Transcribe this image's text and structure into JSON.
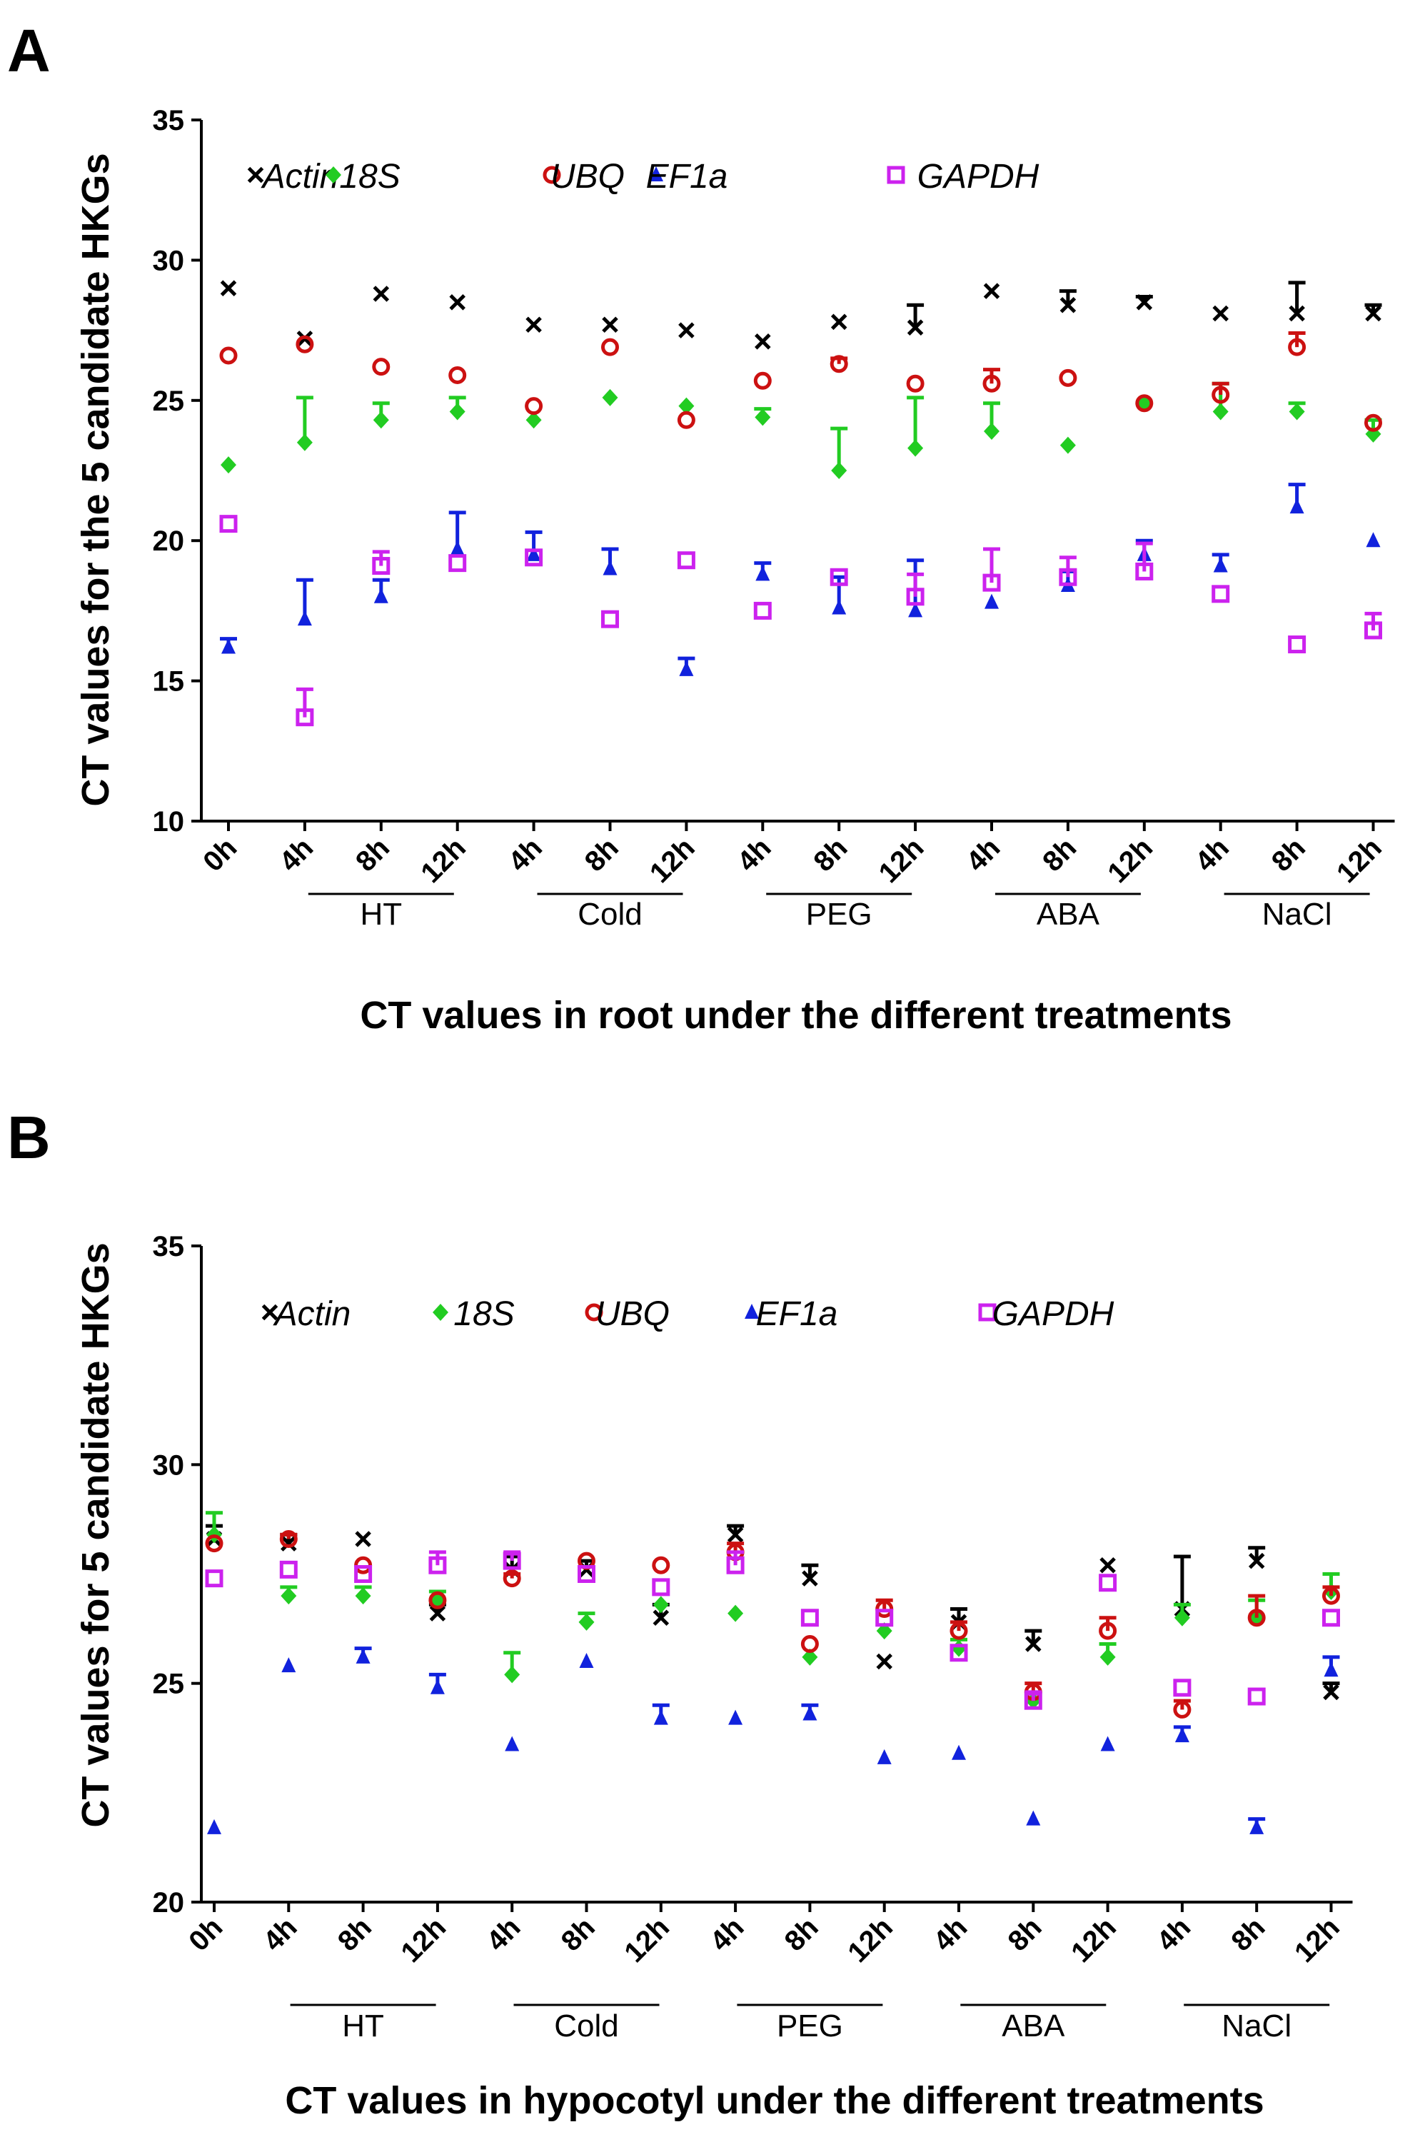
{
  "chart_data": [
    {
      "type": "scatter",
      "panel": "A",
      "ylabel": "CT values for the 5 candidate HKGs",
      "xlabel": "CT values in root under the different treatments",
      "ylim": [
        10,
        35
      ],
      "yticks": [
        10,
        15,
        20,
        25,
        30,
        35
      ],
      "categories": [
        "0h",
        "4h",
        "8h",
        "12h",
        "4h",
        "8h",
        "12h",
        "4h",
        "8h",
        "12h",
        "4h",
        "8h",
        "12h",
        "4h",
        "8h",
        "12h"
      ],
      "groups": [
        {
          "label": "HT",
          "from": 1,
          "to": 3
        },
        {
          "label": "Cold",
          "from": 4,
          "to": 6
        },
        {
          "label": "PEG",
          "from": 7,
          "to": 9
        },
        {
          "label": "ABA",
          "from": 10,
          "to": 12
        },
        {
          "label": "NaCl",
          "from": 13,
          "to": 15
        }
      ],
      "series": [
        {
          "name": "Actin",
          "color": "#000000",
          "marker": "x",
          "values": [
            29.0,
            27.2,
            28.8,
            28.5,
            27.7,
            27.7,
            27.5,
            27.1,
            27.8,
            27.6,
            28.9,
            28.4,
            28.5,
            28.1,
            28.1,
            28.1
          ],
          "errors": [
            0,
            0,
            0,
            0,
            0,
            0,
            0,
            0,
            0,
            0.8,
            0,
            0.5,
            0.2,
            0,
            1.1,
            0.3
          ]
        },
        {
          "name": "18S",
          "color": "#22cc22",
          "marker": "diamond",
          "values": [
            22.7,
            23.5,
            24.3,
            24.6,
            24.3,
            25.1,
            24.8,
            24.4,
            22.5,
            23.3,
            23.9,
            23.4,
            24.9,
            24.6,
            24.6,
            23.8
          ],
          "errors": [
            0,
            1.6,
            0.6,
            0.5,
            0,
            0,
            0,
            0.3,
            1.5,
            1.8,
            1.0,
            0,
            0,
            1.0,
            0.3,
            0.5
          ]
        },
        {
          "name": "UBQ",
          "color": "#cc1111",
          "marker": "circle",
          "values": [
            26.6,
            27.0,
            26.2,
            25.9,
            24.8,
            26.9,
            24.3,
            25.7,
            26.3,
            25.6,
            25.6,
            25.8,
            24.9,
            25.2,
            26.9,
            24.2
          ],
          "errors": [
            0,
            0,
            0,
            0,
            0,
            0,
            0,
            0,
            0.2,
            0,
            0.5,
            0,
            0,
            0.4,
            0.5,
            0
          ]
        },
        {
          "name": "EF1a",
          "color": "#1122dd",
          "marker": "triangle",
          "values": [
            16.2,
            17.2,
            18.0,
            19.7,
            19.5,
            19.0,
            15.4,
            18.8,
            17.6,
            17.5,
            17.8,
            18.4,
            19.5,
            19.1,
            21.2,
            20.0
          ],
          "errors": [
            0.3,
            1.4,
            0.6,
            1.3,
            0.8,
            0.7,
            0.4,
            0.4,
            1.1,
            1.8,
            0,
            0.5,
            0.5,
            0.4,
            0.8,
            0
          ]
        },
        {
          "name": "GAPDH",
          "color": "#cc22ee",
          "marker": "square",
          "values": [
            20.6,
            13.7,
            19.1,
            19.2,
            19.4,
            17.2,
            19.3,
            17.5,
            18.7,
            18.0,
            18.5,
            18.7,
            18.9,
            18.1,
            16.3,
            16.8
          ],
          "errors": [
            0,
            1.0,
            0.5,
            0,
            0,
            0,
            0,
            0,
            0,
            0.8,
            1.2,
            0.7,
            1.0,
            0,
            0,
            0.6
          ]
        }
      ],
      "legend": "top"
    },
    {
      "type": "scatter",
      "panel": "B",
      "ylabel": "CT values for 5 candidate HKGs",
      "xlabel": "CT values in hypocotyl under the different treatments",
      "ylim": [
        20,
        35
      ],
      "yticks": [
        20,
        25,
        30,
        35
      ],
      "categories": [
        "0h",
        "4h",
        "8h",
        "12h",
        "4h",
        "8h",
        "12h",
        "4h",
        "8h",
        "12h",
        "4h",
        "8h",
        "12h",
        "4h",
        "8h",
        "12h"
      ],
      "groups": [
        {
          "label": "HT",
          "from": 1,
          "to": 3
        },
        {
          "label": "Cold",
          "from": 4,
          "to": 6
        },
        {
          "label": "PEG",
          "from": 7,
          "to": 9
        },
        {
          "label": "ABA",
          "from": 10,
          "to": 12
        },
        {
          "label": "NaCl",
          "from": 13,
          "to": 15
        }
      ],
      "series": [
        {
          "name": "Actin",
          "color": "#000000",
          "marker": "x",
          "values": [
            28.3,
            28.2,
            28.3,
            26.6,
            27.6,
            27.6,
            26.5,
            28.4,
            27.4,
            25.5,
            26.4,
            25.9,
            27.7,
            26.7,
            27.8,
            24.8
          ],
          "errors": [
            0.3,
            0.2,
            0,
            0.2,
            0.3,
            0.2,
            0.3,
            0.2,
            0.3,
            0,
            0.3,
            0.3,
            0,
            1.2,
            0.3,
            0.2
          ]
        },
        {
          "name": "18S",
          "color": "#22cc22",
          "marker": "diamond",
          "values": [
            28.4,
            27.0,
            27.0,
            26.9,
            25.2,
            26.4,
            26.8,
            26.6,
            25.6,
            26.2,
            25.8,
            24.6,
            25.6,
            26.5,
            26.5,
            27.1
          ],
          "errors": [
            0.5,
            0.2,
            0.2,
            0.2,
            0.5,
            0.2,
            0,
            0,
            0,
            0,
            0.2,
            0,
            0.3,
            0.3,
            0.4,
            0.4
          ]
        },
        {
          "name": "UBQ",
          "color": "#cc1111",
          "marker": "circle",
          "values": [
            28.2,
            28.3,
            27.7,
            26.9,
            27.4,
            27.8,
            27.7,
            28.0,
            25.9,
            26.7,
            26.2,
            24.8,
            26.2,
            24.4,
            26.5,
            27.0
          ],
          "errors": [
            0,
            0.1,
            0,
            0,
            0.1,
            0,
            0,
            0.2,
            0,
            0.2,
            0.2,
            0.2,
            0.3,
            0.2,
            0.5,
            0.2
          ]
        },
        {
          "name": "EF1a",
          "color": "#1122dd",
          "marker": "triangle",
          "values": [
            21.7,
            25.4,
            25.6,
            24.9,
            23.6,
            25.5,
            24.2,
            24.2,
            24.3,
            23.3,
            23.4,
            21.9,
            23.6,
            23.8,
            21.7,
            25.3
          ],
          "errors": [
            0,
            0,
            0.2,
            0.3,
            0,
            0,
            0.3,
            0,
            0.2,
            0,
            0,
            0,
            0,
            0.2,
            0.2,
            0.3
          ]
        },
        {
          "name": "GAPDH",
          "color": "#cc22ee",
          "marker": "square",
          "values": [
            27.4,
            27.6,
            27.5,
            27.7,
            27.8,
            27.5,
            27.2,
            27.7,
            26.5,
            26.5,
            25.7,
            24.6,
            27.3,
            24.9,
            24.7,
            26.5
          ],
          "errors": [
            0,
            0,
            0,
            0.3,
            0.2,
            0,
            0,
            0.3,
            0,
            0,
            0,
            0.2,
            0,
            0,
            0,
            0
          ]
        }
      ],
      "legend": "top"
    }
  ]
}
